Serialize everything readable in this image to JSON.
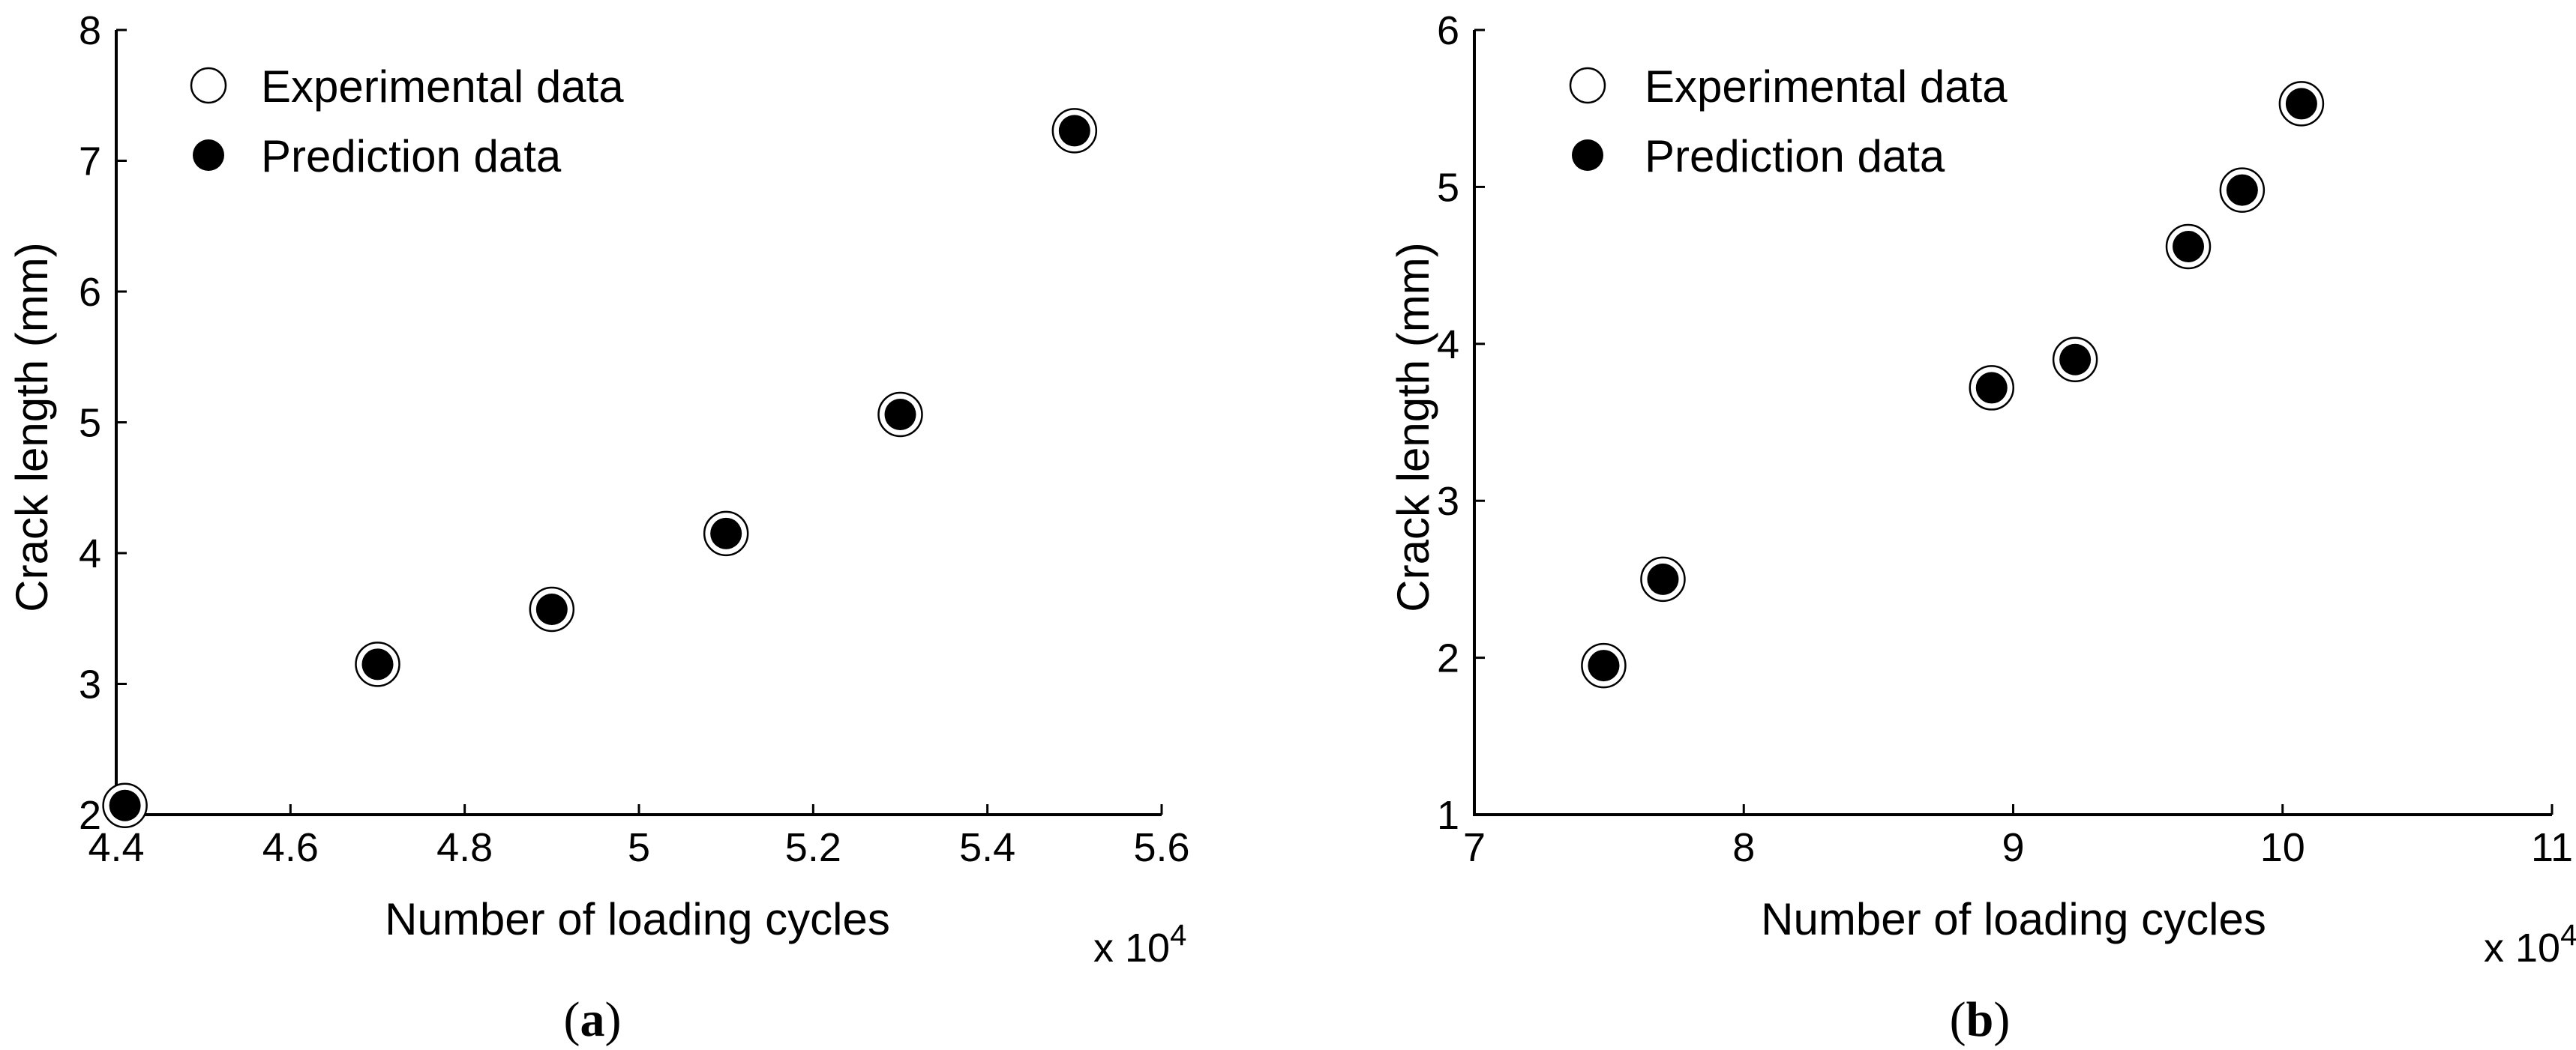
{
  "chart_data": [
    {
      "type": "scatter",
      "caption_letter": "a",
      "xlabel": "Number of loading cycles",
      "ylabel": "Crack length (mm)",
      "x_multiplier": "x 10",
      "x_exponent": "4",
      "xlim": [
        4.4,
        5.6
      ],
      "ylim": [
        2,
        8
      ],
      "xticks": [
        4.4,
        4.6,
        4.8,
        5,
        5.2,
        5.4,
        5.6
      ],
      "xtick_labels": [
        "4.4",
        "4.6",
        "4.8",
        "5",
        "5.2",
        "5.4",
        "5.6"
      ],
      "yticks": [
        2,
        3,
        4,
        5,
        6,
        7,
        8
      ],
      "ytick_labels": [
        "2",
        "3",
        "4",
        "5",
        "6",
        "7",
        "8"
      ],
      "legend": {
        "position": "top-left",
        "experimental": "Experimental data",
        "prediction": "Prediction data"
      },
      "series": [
        {
          "name": "Experimental data",
          "marker": "open-circle",
          "x": [
            4.41,
            4.7,
            4.9,
            5.1,
            5.3,
            5.5
          ],
          "y": [
            2.07,
            3.15,
            3.57,
            4.15,
            5.06,
            7.23
          ]
        },
        {
          "name": "Prediction data",
          "marker": "filled-circle",
          "x": [
            4.41,
            4.7,
            4.9,
            5.1,
            5.3,
            5.5
          ],
          "y": [
            2.07,
            3.15,
            3.57,
            4.15,
            5.06,
            7.23
          ]
        }
      ]
    },
    {
      "type": "scatter",
      "caption_letter": "b",
      "xlabel": "Number of loading cycles",
      "ylabel": "Crack length (mm)",
      "x_multiplier": "x 10",
      "x_exponent": "4",
      "xlim": [
        7,
        11
      ],
      "ylim": [
        1,
        6
      ],
      "xticks": [
        7,
        8,
        9,
        10,
        11
      ],
      "xtick_labels": [
        "7",
        "8",
        "9",
        "10",
        "11"
      ],
      "yticks": [
        1,
        2,
        3,
        4,
        5,
        6
      ],
      "ytick_labels": [
        "1",
        "2",
        "3",
        "4",
        "5",
        "6"
      ],
      "legend": {
        "position": "top-left",
        "experimental": "Experimental data",
        "prediction": "Prediction data"
      },
      "series": [
        {
          "name": "Experimental data",
          "marker": "open-circle",
          "x": [
            7.48,
            7.7,
            8.92,
            9.23,
            9.65,
            9.85,
            10.07
          ],
          "y": [
            1.95,
            2.5,
            3.72,
            3.9,
            4.62,
            4.98,
            5.53
          ]
        },
        {
          "name": "Prediction data",
          "marker": "filled-circle",
          "x": [
            7.48,
            7.7,
            8.92,
            9.23,
            9.65,
            9.85,
            10.07
          ],
          "y": [
            1.95,
            2.5,
            3.72,
            3.9,
            4.62,
            4.98,
            5.53
          ]
        }
      ]
    }
  ]
}
